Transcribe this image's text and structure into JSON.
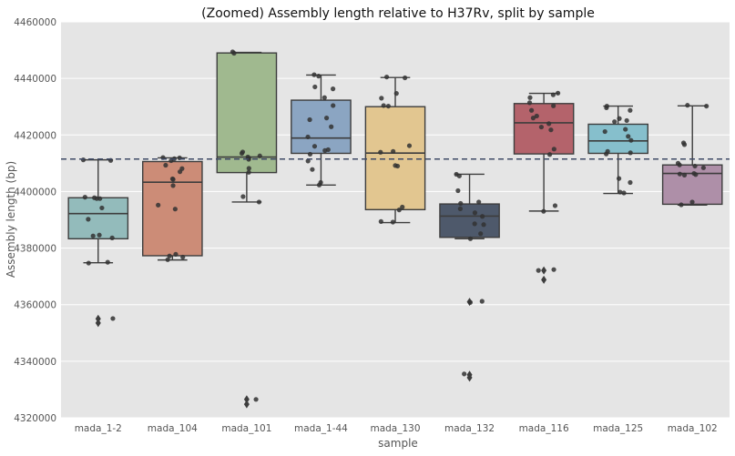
{
  "chart_data": {
    "type": "box",
    "title": "(Zoomed) Assembly length relative to H37Rv, split by sample",
    "xlabel": "sample",
    "ylabel": "Assembly length (bp)",
    "ylim": [
      4320000,
      4460000
    ],
    "yticks": [
      4320000,
      4340000,
      4360000,
      4380000,
      4400000,
      4420000,
      4440000,
      4460000
    ],
    "grid": true,
    "reference_line": 4411500,
    "categories": [
      "mada_1-2",
      "mada_104",
      "mada_101",
      "mada_1-44",
      "mada_130",
      "mada_132",
      "mada_116",
      "mada_125",
      "mada_102"
    ],
    "series": [
      {
        "color": "#93BBBB",
        "q1": 4383300,
        "median": 4392200,
        "q3": 4397800,
        "whisker_low": 4374800,
        "whisker_high": 4411200,
        "outliers": [
          4355000,
          4353500
        ],
        "points": [
          4411200,
          4411000,
          4398000,
          4397500,
          4397800,
          4397500,
          4394200,
          4390200,
          4384300,
          4384600,
          4383600,
          4375000,
          4374700,
          4355100
        ]
      },
      {
        "color": "#CC8C77",
        "q1": 4377300,
        "median": 4403300,
        "q3": 4410600,
        "whisker_low": 4375800,
        "whisker_high": 4411900,
        "outliers": [],
        "points": [
          4412000,
          4411900,
          4411600,
          4410900,
          4409300,
          4408100,
          4407000,
          4404500,
          4404300,
          4402100,
          4395200,
          4393800,
          4377800,
          4377200,
          4376800,
          4375900
        ]
      },
      {
        "color": "#A0B98F",
        "q1": 4406700,
        "median": 4412200,
        "q3": 4449000,
        "whisker_low": 4396300,
        "whisker_high": 4449200,
        "outliers": [
          4326500,
          4324800
        ],
        "points": [
          4449400,
          4448900,
          4414000,
          4413500,
          4412600,
          4412200,
          4411800,
          4411400,
          4408200,
          4406800,
          4398200,
          4396300,
          4326500
        ]
      },
      {
        "color": "#8BA5C2",
        "q1": 4413500,
        "median": 4418900,
        "q3": 4432300,
        "whisker_low": 4402300,
        "whisker_high": 4441200,
        "outliers": [],
        "points": [
          4441300,
          4440800,
          4437000,
          4436300,
          4433200,
          4430400,
          4426000,
          4425400,
          4422900,
          4419300,
          4416000,
          4414800,
          4414500,
          4413200,
          4410800,
          4407800,
          4403200,
          4402300
        ]
      },
      {
        "color": "#E2C690",
        "q1": 4393600,
        "median": 4413600,
        "q3": 4430000,
        "whisker_low": 4389000,
        "whisker_high": 4440300,
        "outliers": [],
        "points": [
          4440500,
          4440200,
          4434700,
          4433000,
          4430400,
          4430200,
          4416200,
          4414200,
          4413900,
          4409200,
          4409000,
          4394500,
          4393500,
          4389400,
          4389200
        ]
      },
      {
        "color": "#4E596B",
        "q1": 4383800,
        "median": 4391300,
        "q3": 4395600,
        "whisker_low": 4383300,
        "whisker_high": 4406100,
        "outliers": [
          4361000,
          4335200,
          4334200
        ],
        "points": [
          4406100,
          4405500,
          4400300,
          4396300,
          4395800,
          4393900,
          4392500,
          4391200,
          4388600,
          4388300,
          4385100,
          4383300,
          4361200,
          4360800,
          4335500
        ]
      },
      {
        "color": "#B4636B",
        "q1": 4413300,
        "median": 4424300,
        "q3": 4431100,
        "whisker_low": 4393100,
        "whisker_high": 4434700,
        "outliers": [
          4372100,
          4368800
        ],
        "points": [
          4434800,
          4434200,
          4433200,
          4431400,
          4430300,
          4428700,
          4426700,
          4426000,
          4424000,
          4422800,
          4421800,
          4415000,
          4413100,
          4395000,
          4393000,
          4372400,
          4372100
        ]
      },
      {
        "color": "#86BFCC",
        "q1": 4413500,
        "median": 4417900,
        "q3": 4423800,
        "whisker_low": 4399300,
        "whisker_high": 4430200,
        "outliers": [],
        "points": [
          4430200,
          4429600,
          4428700,
          4425800,
          4425100,
          4424700,
          4422000,
          4421200,
          4419500,
          4418100,
          4414200,
          4413700,
          4413300,
          4404600,
          4403200,
          4399800,
          4399500
        ]
      },
      {
        "color": "#AE8FA8",
        "q1": 4395500,
        "median": 4406400,
        "q3": 4409400,
        "whisker_low": 4395200,
        "whisker_high": 4430300,
        "outliers": [],
        "points": [
          4430500,
          4430200,
          4417200,
          4416600,
          4410000,
          4409400,
          4409000,
          4408400,
          4406400,
          4406200,
          4406000,
          4405800,
          4396300,
          4395300
        ]
      }
    ]
  }
}
